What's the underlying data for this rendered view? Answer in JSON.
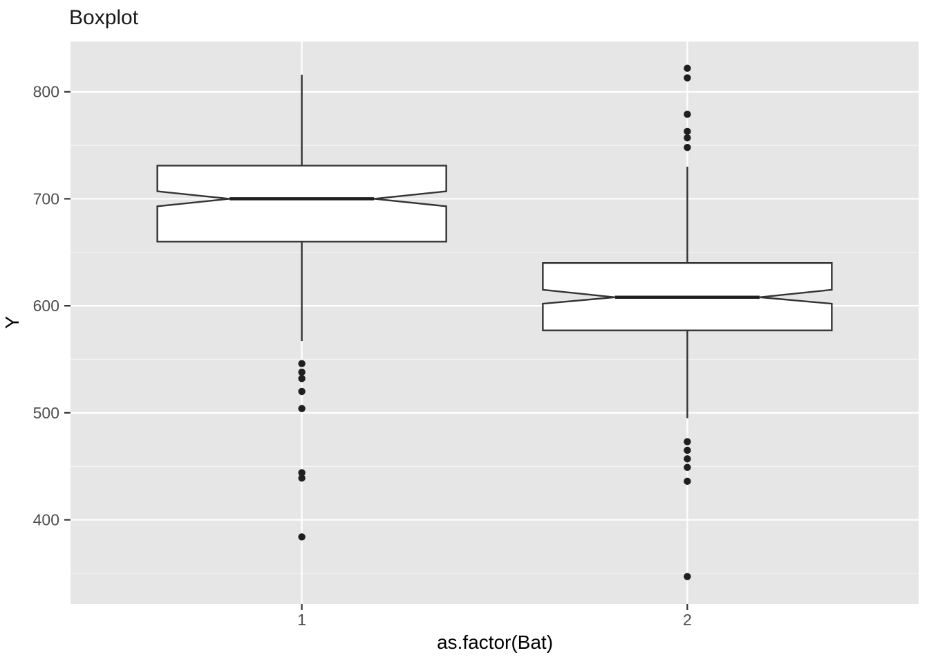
{
  "figure": {
    "title": "Boxplot"
  },
  "chart_data": {
    "type": "boxplot",
    "title": "Boxplot",
    "xlabel": "as.factor(Bat)",
    "ylabel": "Y",
    "notched": true,
    "legend": "none",
    "grid": "on",
    "x_categories": [
      "1",
      "2"
    ],
    "y_axis": {
      "major_ticks": [
        400,
        500,
        600,
        700,
        800
      ],
      "minor_ticks": [
        350,
        450,
        550,
        650,
        750
      ],
      "range": [
        321.5,
        847.0
      ]
    },
    "series": [
      {
        "category": "1",
        "whisker_low": 567,
        "q1": 660,
        "median": 700,
        "q3": 731,
        "whisker_high": 816,
        "notch_low": 693,
        "notch_high": 707,
        "outliers": [
          546,
          538,
          532,
          520,
          504,
          444,
          439,
          384
        ]
      },
      {
        "category": "2",
        "whisker_low": 495,
        "q1": 577,
        "median": 608,
        "q3": 640,
        "whisker_high": 730,
        "notch_low": 602,
        "notch_high": 615,
        "outliers": [
          822,
          813,
          779,
          763,
          757,
          748,
          473,
          465,
          457,
          449,
          436,
          347
        ]
      }
    ],
    "style": {
      "panel_bg": "#E6E6E6",
      "grid_major_color": "#FFFFFF",
      "grid_minor_color": "#F4F4F4",
      "box_fill": "#FFFFFF",
      "box_stroke": "#333333",
      "median_color": "#1F1F1F",
      "whisker_color": "#333333",
      "outlier_color": "#1F1F1F",
      "tick_mark_color": "#333333",
      "tick_label_color": "#4D4D4D",
      "title_color": "#1A1A1A",
      "axis_title_color": "#000000"
    }
  }
}
